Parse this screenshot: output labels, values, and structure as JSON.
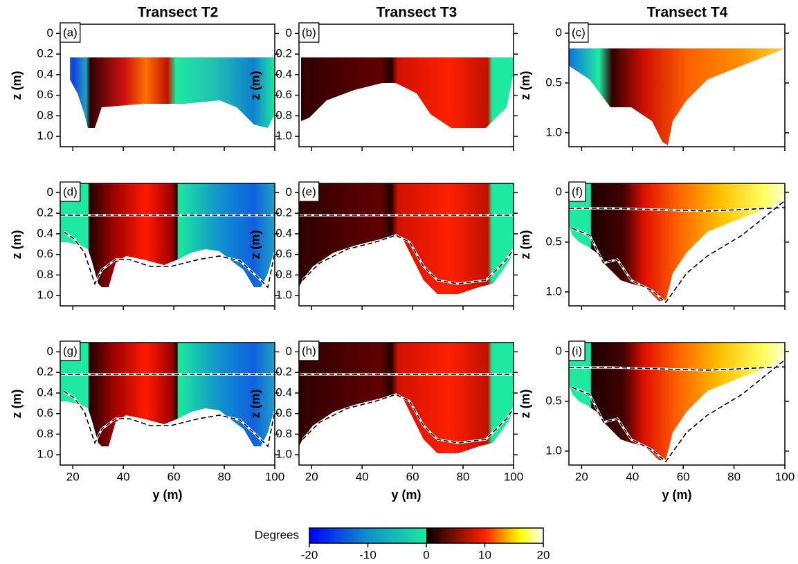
{
  "chart_data": [
    {
      "type": "heatmap",
      "label": "(a)",
      "title": "Transect T2",
      "ylabel": "z (m)",
      "xlim": [
        15,
        100
      ],
      "xticks": [
        20,
        40,
        60,
        80,
        100
      ],
      "ylim": [
        -0.09,
        1.1
      ],
      "y_inverted": true,
      "yticks": [
        0,
        0.2,
        0.4,
        0.6,
        0.8,
        {
          "value": 1,
          "label": "1.0"
        }
      ]
    },
    {
      "type": "heatmap",
      "label": "(b)",
      "title": "Transect T3",
      "ylabel": "z (m)",
      "xlim": [
        15,
        100
      ],
      "xticks": [
        20,
        40,
        60,
        80,
        100
      ],
      "ylim": [
        -0.09,
        1.1
      ],
      "y_inverted": true,
      "yticks": [
        0,
        0.2,
        0.4,
        0.6,
        0.8,
        {
          "value": 1,
          "label": "1.0"
        }
      ]
    },
    {
      "type": "heatmap",
      "label": "(c)",
      "title": "Transect T4",
      "ylabel": "z (m)",
      "xlim": [
        15,
        100
      ],
      "xticks": [
        20,
        40,
        60,
        80,
        100
      ],
      "ylim": [
        -0.09,
        1.14
      ],
      "y_inverted": true,
      "yticks": [
        0,
        0.5,
        {
          "value": 1,
          "label": "1.0"
        }
      ]
    },
    {
      "type": "heatmap",
      "label": "(d)",
      "ylabel": "z (m)",
      "xlim": [
        15,
        100
      ],
      "xticks": [
        20,
        40,
        60,
        80,
        100
      ],
      "ylim": [
        -0.09,
        1.1
      ],
      "y_inverted": true,
      "yticks": [
        0,
        0.2,
        0.4,
        0.6,
        0.8,
        {
          "value": 1,
          "label": "1.0"
        }
      ]
    },
    {
      "type": "heatmap",
      "label": "(e)",
      "ylabel": "z (m)",
      "xlim": [
        15,
        100
      ],
      "xticks": [
        20,
        40,
        60,
        80,
        100
      ],
      "ylim": [
        -0.09,
        1.1
      ],
      "y_inverted": true,
      "yticks": [
        0,
        0.2,
        0.4,
        0.6,
        0.8,
        {
          "value": 1,
          "label": "1.0"
        }
      ]
    },
    {
      "type": "heatmap",
      "label": "(f)",
      "ylabel": "z (m)",
      "xlim": [
        15,
        100
      ],
      "xticks": [
        20,
        40,
        60,
        80,
        100
      ],
      "ylim": [
        -0.09,
        1.14
      ],
      "y_inverted": true,
      "yticks": [
        0,
        0.5,
        {
          "value": 1,
          "label": "1.0"
        }
      ]
    },
    {
      "type": "heatmap",
      "label": "(g)",
      "ylabel": "z (m)",
      "xlabel": "y (m)",
      "xlim": [
        15,
        100
      ],
      "xticks": [
        20,
        40,
        60,
        80,
        100
      ],
      "ylim": [
        -0.09,
        1.1
      ],
      "y_inverted": true,
      "yticks": [
        0,
        0.2,
        0.4,
        0.6,
        0.8,
        {
          "value": 1,
          "label": "1.0"
        }
      ]
    },
    {
      "type": "heatmap",
      "label": "(h)",
      "ylabel": "z (m)",
      "xlabel": "y (m)",
      "xlim": [
        15,
        100
      ],
      "xticks": [
        20,
        40,
        60,
        80,
        100
      ],
      "ylim": [
        -0.09,
        1.1
      ],
      "y_inverted": true,
      "yticks": [
        0,
        0.2,
        0.4,
        0.6,
        0.8,
        {
          "value": 1,
          "label": "1.0"
        }
      ]
    },
    {
      "type": "heatmap",
      "label": "(i)",
      "ylabel": "z (m)",
      "xlabel": "y (m)",
      "xlim": [
        15,
        100
      ],
      "xticks": [
        20,
        40,
        60,
        80,
        100
      ],
      "ylim": [
        -0.09,
        1.14
      ],
      "y_inverted": true,
      "yticks": [
        0,
        0.5,
        {
          "value": 1,
          "label": "1.0"
        }
      ]
    }
  ],
  "colorbar": {
    "label": "Degrees",
    "lim": [
      -20,
      20
    ],
    "ticks": [
      -20,
      -10,
      0,
      10,
      20
    ]
  }
}
